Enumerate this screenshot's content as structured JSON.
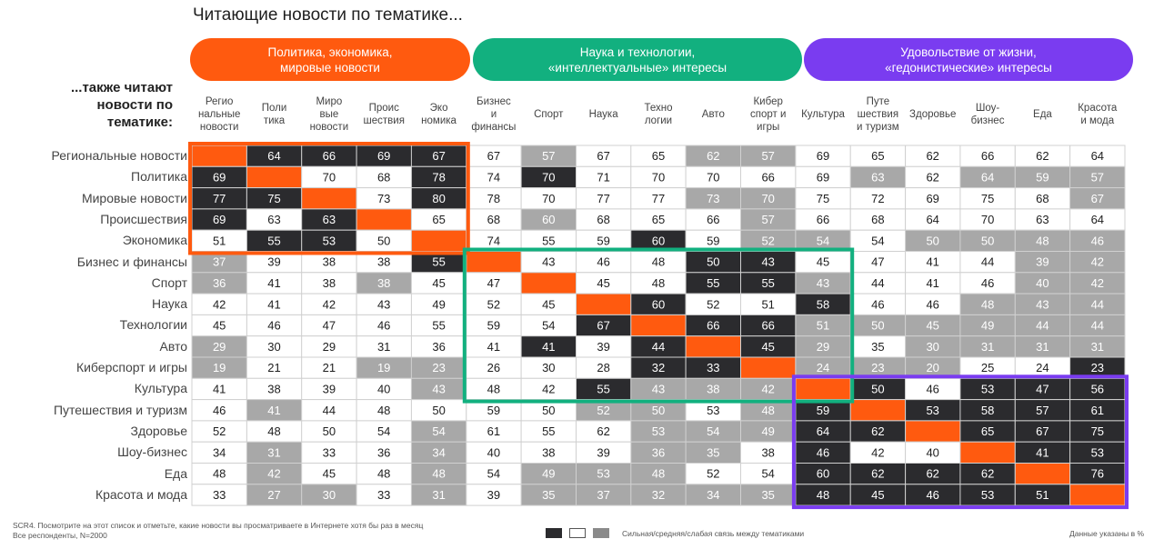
{
  "title": "Читающие новости по тематике...",
  "row_axis_title": "...также читают новости по тематике:",
  "groups": [
    {
      "label": "Политика, экономика, мировые новости",
      "color": "#FF5A0F"
    },
    {
      "label": "Наука и технологии, «интеллектуальные» интересы",
      "color": "#12B07F"
    },
    {
      "label": "Удовольствие от жизни, «гедонистические» интересы",
      "color": "#7A3CF0"
    }
  ],
  "colors": {
    "strong": "#2B2B2E",
    "medium": "#FFFFFF",
    "weak": "#A8A8A8",
    "diagonal": "#FF5A0F",
    "grid_line": "#D0D0D0"
  },
  "chart_data": {
    "type": "heatmap",
    "columns": [
      "Регио нальные новости",
      "Поли тика",
      "Миро вые новости",
      "Проис шествия",
      "Эко номика",
      "Бизнес и финансы",
      "Спорт",
      "Наука",
      "Техно логии",
      "Авто",
      "Кибер спорт и игры",
      "Культура",
      "Путе шествия и туризм",
      "Здоровье",
      "Шоу-бизнес",
      "Еда",
      "Красота и мода"
    ],
    "column_lines": [
      [
        "Регио",
        "нальные",
        "новости"
      ],
      [
        "Поли",
        "тика"
      ],
      [
        "Миро",
        "вые",
        "новости"
      ],
      [
        "Проис",
        "шествия"
      ],
      [
        "Эко",
        "номика"
      ],
      [
        "Бизнес",
        "и",
        "финансы"
      ],
      [
        "Спорт"
      ],
      [
        "Наука"
      ],
      [
        "Техно",
        "логии"
      ],
      [
        "Авто"
      ],
      [
        "Кибер",
        "спорт и",
        "игры"
      ],
      [
        "Культура"
      ],
      [
        "Путе",
        "шествия",
        "и туризм"
      ],
      [
        "Здоровье"
      ],
      [
        "Шоу-",
        "бизнес"
      ],
      [
        "Еда"
      ],
      [
        "Красота",
        "и мода"
      ]
    ],
    "rows": [
      "Региональные новости",
      "Политика",
      "Мировые новости",
      "Происшествия",
      "Экономика",
      "Бизнес и финансы",
      "Спорт",
      "Наука",
      "Технологии",
      "Авто",
      "Киберспорт и игры",
      "Культура",
      "Путешествия и туризм",
      "Здоровье",
      "Шоу-бизнес",
      "Еда",
      "Красота и мода"
    ],
    "values": [
      [
        null,
        64,
        66,
        69,
        67,
        67,
        57,
        67,
        65,
        62,
        57,
        69,
        65,
        62,
        66,
        62,
        64
      ],
      [
        69,
        null,
        70,
        68,
        78,
        74,
        70,
        71,
        70,
        70,
        66,
        69,
        63,
        62,
        64,
        59,
        57
      ],
      [
        77,
        75,
        null,
        73,
        80,
        78,
        70,
        77,
        77,
        73,
        70,
        75,
        72,
        69,
        75,
        68,
        67
      ],
      [
        69,
        63,
        63,
        null,
        65,
        68,
        60,
        68,
        65,
        66,
        57,
        66,
        68,
        64,
        70,
        63,
        64
      ],
      [
        51,
        55,
        53,
        50,
        null,
        74,
        55,
        59,
        60,
        59,
        52,
        54,
        54,
        50,
        50,
        48,
        46
      ],
      [
        37,
        39,
        38,
        38,
        55,
        null,
        43,
        46,
        48,
        50,
        43,
        45,
        47,
        41,
        44,
        39,
        42
      ],
      [
        36,
        41,
        38,
        38,
        45,
        47,
        null,
        45,
        48,
        55,
        55,
        43,
        44,
        41,
        46,
        40,
        42
      ],
      [
        42,
        41,
        42,
        43,
        49,
        52,
        45,
        null,
        60,
        52,
        51,
        58,
        46,
        46,
        48,
        43,
        44
      ],
      [
        45,
        46,
        47,
        46,
        55,
        59,
        54,
        67,
        null,
        66,
        66,
        51,
        50,
        45,
        49,
        44,
        44
      ],
      [
        29,
        30,
        29,
        31,
        36,
        41,
        41,
        39,
        44,
        null,
        45,
        29,
        35,
        30,
        31,
        31,
        31
      ],
      [
        19,
        21,
        21,
        19,
        23,
        26,
        30,
        28,
        32,
        33,
        null,
        24,
        23,
        20,
        25,
        24,
        23
      ],
      [
        41,
        38,
        39,
        40,
        43,
        48,
        42,
        55,
        43,
        38,
        42,
        null,
        50,
        46,
        53,
        47,
        56
      ],
      [
        46,
        41,
        44,
        48,
        50,
        59,
        50,
        52,
        50,
        53,
        48,
        59,
        null,
        53,
        58,
        57,
        61
      ],
      [
        52,
        48,
        50,
        54,
        54,
        61,
        55,
        62,
        53,
        54,
        49,
        64,
        62,
        null,
        65,
        67,
        75
      ],
      [
        34,
        31,
        33,
        36,
        34,
        40,
        38,
        39,
        36,
        35,
        38,
        46,
        42,
        40,
        null,
        41,
        53
      ],
      [
        48,
        42,
        45,
        48,
        48,
        54,
        49,
        53,
        48,
        52,
        54,
        60,
        62,
        62,
        62,
        null,
        76
      ],
      [
        33,
        27,
        30,
        33,
        31,
        39,
        35,
        37,
        32,
        34,
        35,
        48,
        45,
        46,
        53,
        51,
        null
      ]
    ],
    "levels": [
      "WSSSSWWSSWWSSSSSS",
      "SWSSSWSWWSWSWWWWW",
      "SSWSSWWWWWWWWWWWW",
      "SSSWWWWWWWWWWWWWW",
      "WSSWWWWWSWWWWWWWW",
      "WWWWSWWWWSSWWWWWW",
      "WWWWWWWWWSSWWWWWW",
      "WWWWWWWWSWWSWWWWW",
      "WWWWWWWSWSSWWWWWW",
      "WWWWWWSWSWSWWWWWW",
      "WWWWWWWWSSWWWWWWW",
      "WWWWWWWSWWWWSWSSS",
      "WWWWWWWWWSWSWSSSS",
      "WWWWWWWWWWWSSWSSS",
      "WWWWWWWWWWWSWWWSS",
      "WWWWWWWWWWWSSSSWS",
      "WWWWWWWWWWWSSSSSW"
    ],
    "level_fill": [
      "WSSSSWGWWGGWWWWWW",
      "SWWWSWSWWWWWGWGGG",
      "SSWWSWWWWGGWWWWWG",
      "SWSWWWGWWWGWWWWWW",
      "WSSWWWWWSWGGWGGGG",
      "GWWWSWWWWSSWWWWGG",
      "GWWGWWWWWSSGWWWGG",
      "WWWWWWWWSWWSWWGGG",
      "WWWWWWWSWSSGGGGGG",
      "GWWWWWSWSWSGWGGGG",
      "GWWGGWWWSSWGGGWWS",
      "WWWWGWWSGGGWSWSSS",
      "WGWWWWWGGWGSWSSSS",
      "WWWWGWWWGGGSSWSSS",
      "WGWWGWWWGGWSWWWSS",
      "WGWWGWGGGWWSSSSWS",
      "WGGWGWGGGGGSSSSSW"
    ],
    "legend_text": "Сильная/средняя/слабая связь между тематиками"
  },
  "footer": {
    "question": "SCR4. Посмотрите на этот список и отметьте, какие новости вы просматриваете в Интернете хотя бы раз в месяц",
    "base": "Все респонденты, N=2000",
    "note": "Данные указаны в %"
  }
}
